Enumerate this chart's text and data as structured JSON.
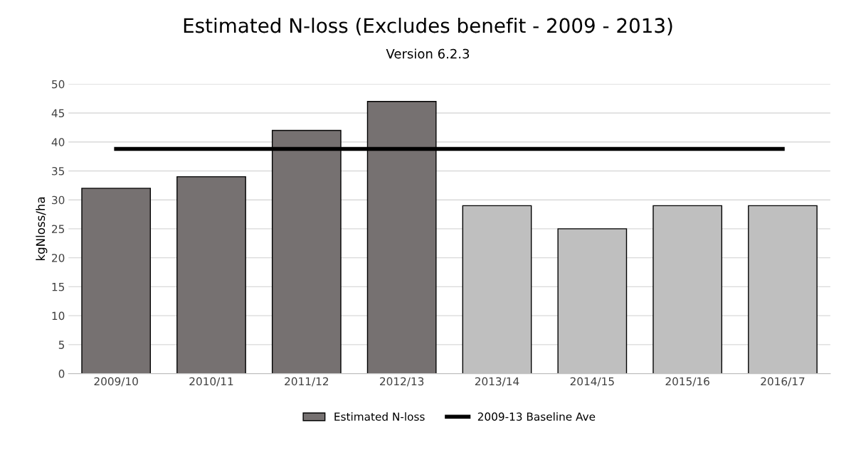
{
  "chart_data": {
    "type": "bar",
    "title": "Estimated N-loss (Excludes benefit - 2009 - 2013)",
    "subtitle": "Version 6.2.3",
    "ylabel": "kgNloss/ha",
    "categories": [
      "2009/10",
      "2010/11",
      "2011/12",
      "2012/13",
      "2013/14",
      "2014/15",
      "2015/16",
      "2016/17"
    ],
    "series": [
      {
        "name": "Estimated N-loss",
        "colors": [
          "#767171",
          "#767171",
          "#767171",
          "#767171",
          "#bfbfbf",
          "#bfbfbf",
          "#bfbfbf",
          "#bfbfbf"
        ],
        "values": [
          32,
          34,
          42,
          47,
          29,
          25,
          29,
          29
        ]
      },
      {
        "name": "2009-13 Baseline Ave",
        "type": "line",
        "color": "#000000",
        "values": [
          38.8,
          38.8,
          38.8,
          38.8,
          38.8,
          38.8,
          38.8,
          38.8
        ]
      }
    ],
    "ylim": [
      0,
      50
    ],
    "yticks": [
      0,
      5,
      10,
      15,
      20,
      25,
      30,
      35,
      40,
      45,
      50
    ],
    "grid": "y",
    "legend": "bottom",
    "marker": "none",
    "line_style": "solid"
  }
}
